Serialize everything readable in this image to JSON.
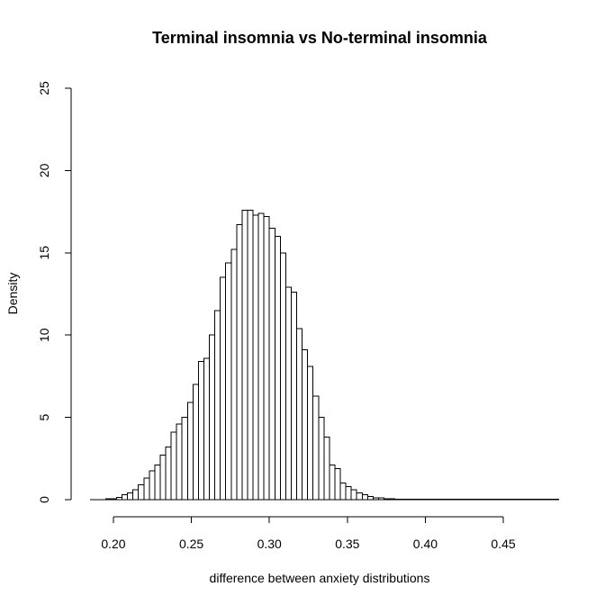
{
  "chart_data": {
    "type": "bar",
    "title": "Terminal insomnia vs No-terminal insomnia",
    "xlabel": "difference between anxiety distributions",
    "ylabel": "Density",
    "xlim": [
      0.185,
      0.48
    ],
    "ylim": [
      0,
      25
    ],
    "x_ticks": [
      0.2,
      0.25,
      0.3,
      0.35,
      0.4,
      0.45
    ],
    "x_tick_labels": [
      "0.20",
      "0.25",
      "0.30",
      "0.35",
      "0.40",
      "0.45"
    ],
    "y_ticks": [
      0,
      5,
      10,
      15,
      20,
      25
    ],
    "y_tick_labels": [
      "0",
      "5",
      "10",
      "15",
      "20",
      "25"
    ],
    "bin_start": 0.195,
    "bin_width": 0.0035,
    "values": [
      0.05,
      0.05,
      0.15,
      0.3,
      0.4,
      0.6,
      0.9,
      1.3,
      1.75,
      2.1,
      2.7,
      3.2,
      4.1,
      4.6,
      5.0,
      5.9,
      7.0,
      8.4,
      8.6,
      10.0,
      11.5,
      13.5,
      14.4,
      15.2,
      16.7,
      17.6,
      17.6,
      17.3,
      17.4,
      17.2,
      16.5,
      16.0,
      15.0,
      12.9,
      12.6,
      10.4,
      9.1,
      8.1,
      6.3,
      5.0,
      3.8,
      2.1,
      1.9,
      1.0,
      0.8,
      0.6,
      0.4,
      0.3,
      0.2,
      0.1,
      0.1,
      0.05,
      0.05,
      0.03,
      0.02,
      0.02,
      0.02,
      0.02,
      0.02,
      0.02,
      0.02,
      0.02,
      0.02,
      0.02,
      0.02,
      0.02,
      0.02,
      0.02,
      0.02,
      0.02,
      0.02,
      0.02,
      0.02,
      0.02,
      0.02,
      0.02,
      0.02,
      0.02,
      0.02,
      0.02,
      0.02,
      0.02,
      0.02
    ],
    "bar_fill": "#ffffff",
    "bar_stroke": "#000000",
    "grid": false,
    "legend": "none"
  }
}
